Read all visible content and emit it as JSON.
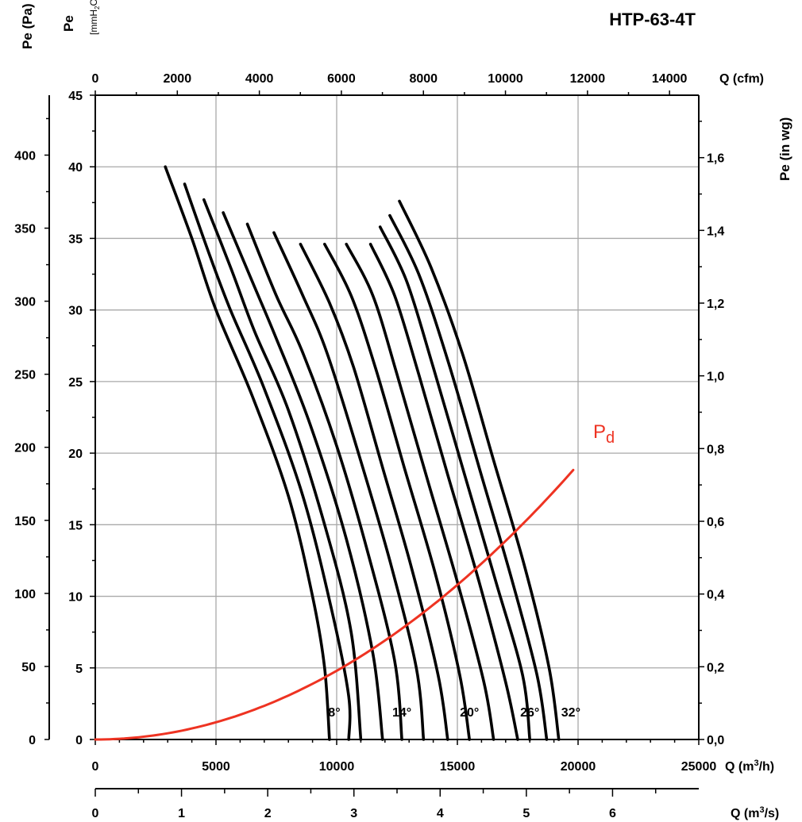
{
  "chart_data": {
    "type": "line",
    "title": "HTP-63-4T",
    "axes": {
      "bottom_primary": {
        "label_base": "Q (m",
        "label_sup": "3",
        "label_end": "/h)",
        "range": [
          0,
          25000
        ],
        "ticks": [
          0,
          5000,
          10000,
          15000,
          20000,
          25000
        ]
      },
      "bottom_secondary": {
        "label_base": "Q (m",
        "label_sup": "3",
        "label_end": "/s)",
        "range": [
          0,
          7
        ],
        "ticks": [
          0,
          1,
          2,
          3,
          4,
          5,
          6
        ]
      },
      "top": {
        "label": "Q (cfm)",
        "range": [
          0,
          14713
        ],
        "ticks": [
          0,
          2000,
          4000,
          6000,
          8000,
          10000,
          12000,
          14000
        ]
      },
      "left_outer": {
        "label": "Pe (Pa)",
        "range": [
          0,
          441
        ],
        "ticks": [
          0,
          50,
          100,
          150,
          200,
          250,
          300,
          350,
          400
        ]
      },
      "left_inner": {
        "label": "Pe",
        "unit_base": "[mmH",
        "unit_sub": "2",
        "unit_end": "O]",
        "range": [
          0,
          45
        ],
        "ticks": [
          0,
          5,
          10,
          15,
          20,
          25,
          30,
          35,
          40,
          45
        ]
      },
      "right": {
        "label": "Pe (in wg)",
        "range": [
          0,
          1.7717
        ],
        "ticks": [
          "0,0",
          "0,2",
          "0,4",
          "0,6",
          "0,8",
          "1,0",
          "1,2",
          "1,4",
          "1,6"
        ],
        "tick_values": [
          0,
          0.2,
          0.4,
          0.6,
          0.8,
          1.0,
          1.2,
          1.4,
          1.6
        ]
      }
    },
    "grid": true,
    "series": [
      {
        "id": "a8",
        "points": [
          [
            2900,
            40.0
          ],
          [
            4000,
            35.0
          ],
          [
            5000,
            30.0
          ],
          [
            6500,
            24.0
          ],
          [
            8000,
            17.0
          ],
          [
            9000,
            10.0
          ],
          [
            9500,
            5.0
          ],
          [
            9700,
            0
          ]
        ]
      },
      {
        "id": "a10",
        "points": [
          [
            3700,
            38.8
          ],
          [
            4700,
            34.0
          ],
          [
            5600,
            30.0
          ],
          [
            7000,
            24.5
          ],
          [
            8600,
            17.0
          ],
          [
            9800,
            9.0
          ],
          [
            10500,
            3.0
          ],
          [
            10500,
            0
          ]
        ]
      },
      {
        "id": "a12",
        "points": [
          [
            4500,
            37.7
          ],
          [
            5600,
            33.0
          ],
          [
            6600,
            28.5
          ],
          [
            8000,
            23.0
          ],
          [
            9500,
            15.0
          ],
          [
            10600,
            7.5
          ],
          [
            11000,
            0
          ]
        ]
      },
      {
        "id": "a14",
        "points": [
          [
            5300,
            36.8
          ],
          [
            6500,
            32.0
          ],
          [
            7500,
            28.0
          ],
          [
            8900,
            22.0
          ],
          [
            10400,
            14.0
          ],
          [
            11500,
            6.0
          ],
          [
            11900,
            0
          ]
        ]
      },
      {
        "id": "a16",
        "points": [
          [
            6300,
            36.0
          ],
          [
            7500,
            31.0
          ],
          [
            8600,
            27.0
          ],
          [
            10000,
            20.5
          ],
          [
            11300,
            13.0
          ],
          [
            12400,
            5.5
          ],
          [
            12700,
            0
          ]
        ]
      },
      {
        "id": "a18",
        "points": [
          [
            7400,
            35.4
          ],
          [
            8600,
            31.0
          ],
          [
            9600,
            27.0
          ],
          [
            10900,
            20.0
          ],
          [
            12200,
            12.5
          ],
          [
            13300,
            5.0
          ],
          [
            13600,
            0
          ]
        ]
      },
      {
        "id": "a20",
        "points": [
          [
            8500,
            34.6
          ],
          [
            9700,
            30.5
          ],
          [
            10700,
            26.0
          ],
          [
            11900,
            19.0
          ],
          [
            13100,
            12.0
          ],
          [
            14200,
            4.5
          ],
          [
            14600,
            0
          ]
        ]
      },
      {
        "id": "a22",
        "points": [
          [
            9500,
            34.6
          ],
          [
            10600,
            31.0
          ],
          [
            11600,
            26.0
          ],
          [
            12800,
            19.0
          ],
          [
            14100,
            11.5
          ],
          [
            15100,
            4.5
          ],
          [
            15500,
            0
          ]
        ]
      },
      {
        "id": "a24",
        "points": [
          [
            10400,
            34.6
          ],
          [
            11500,
            31.0
          ],
          [
            12500,
            25.5
          ],
          [
            13700,
            18.5
          ],
          [
            15000,
            11.0
          ],
          [
            16100,
            4.0
          ],
          [
            16500,
            0
          ]
        ]
      },
      {
        "id": "a26",
        "points": [
          [
            11400,
            34.6
          ],
          [
            12400,
            31.0
          ],
          [
            13400,
            25.5
          ],
          [
            14600,
            18.5
          ],
          [
            15900,
            11.0
          ],
          [
            17000,
            4.0
          ],
          [
            17500,
            0
          ]
        ]
      },
      {
        "id": "a28",
        "points": [
          [
            11800,
            35.8
          ],
          [
            12900,
            32.0
          ],
          [
            14000,
            26.0
          ],
          [
            15300,
            18.5
          ],
          [
            16600,
            11.0
          ],
          [
            17700,
            4.5
          ],
          [
            18000,
            0
          ]
        ]
      },
      {
        "id": "a30",
        "points": [
          [
            12200,
            36.6
          ],
          [
            13400,
            32.5
          ],
          [
            14600,
            26.5
          ],
          [
            15900,
            19.0
          ],
          [
            17200,
            11.5
          ],
          [
            18300,
            4.5
          ],
          [
            18700,
            0
          ]
        ]
      },
      {
        "id": "a32",
        "points": [
          [
            12600,
            37.6
          ],
          [
            13900,
            33.0
          ],
          [
            15200,
            27.0
          ],
          [
            16500,
            19.5
          ],
          [
            17800,
            12.0
          ],
          [
            18800,
            5.0
          ],
          [
            19200,
            0
          ]
        ]
      }
    ],
    "pd_curve": {
      "name": "P",
      "name_sub": "d",
      "color": "#ee3322",
      "formula": "y = 4.8 * (x/10000)^2",
      "x_range": [
        0,
        19900
      ]
    },
    "curve_labels": [
      {
        "text": "8°",
        "x": 9900,
        "y": 1.6
      },
      {
        "text": "14°",
        "x": 12700,
        "y": 1.6
      },
      {
        "text": "20°",
        "x": 15500,
        "y": 1.6
      },
      {
        "text": "26°",
        "x": 18000,
        "y": 1.6
      },
      {
        "text": "32°",
        "x": 19700,
        "y": 1.6
      }
    ]
  }
}
